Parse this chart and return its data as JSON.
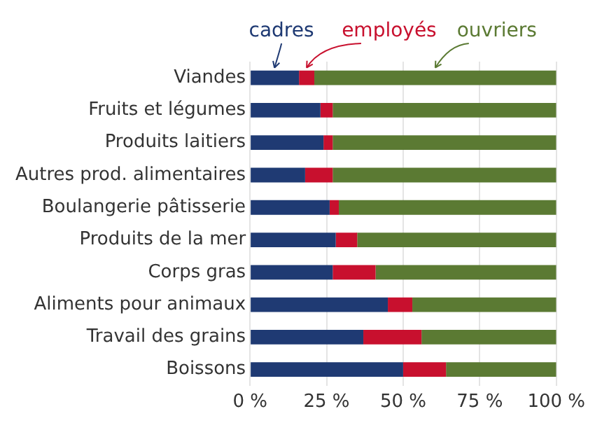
{
  "chart_data": {
    "type": "bar",
    "orientation": "horizontal",
    "stacked": true,
    "categories": [
      "Viandes",
      "Fruits et légumes",
      "Produits laitiers",
      "Autres prod. alimentaires",
      "Boulangerie pâtisserie",
      "Produits de la mer",
      "Corps gras",
      "Aliments pour animaux",
      "Travail des grains",
      "Boissons"
    ],
    "series": [
      {
        "name": "cadres",
        "color": "#1f3a73",
        "values": [
          16,
          23,
          24,
          18,
          26,
          28,
          27,
          45,
          37,
          50
        ]
      },
      {
        "name": "employés",
        "color": "#c8102e",
        "values": [
          5,
          4,
          3,
          9,
          3,
          7,
          14,
          8,
          19,
          14
        ]
      },
      {
        "name": "ouvriers",
        "color": "#5b7a33",
        "values": [
          79,
          73,
          73,
          73,
          71,
          65,
          59,
          47,
          44,
          36
        ]
      }
    ],
    "xlim": [
      0,
      100
    ],
    "xticks": [
      {
        "value": 0,
        "label": "0 %"
      },
      {
        "value": 25,
        "label": "25 %"
      },
      {
        "value": 50,
        "label": "50 %"
      },
      {
        "value": 75,
        "label": "75 %"
      },
      {
        "value": 100,
        "label": "100 %"
      }
    ],
    "grid": "x",
    "legend": "top"
  }
}
